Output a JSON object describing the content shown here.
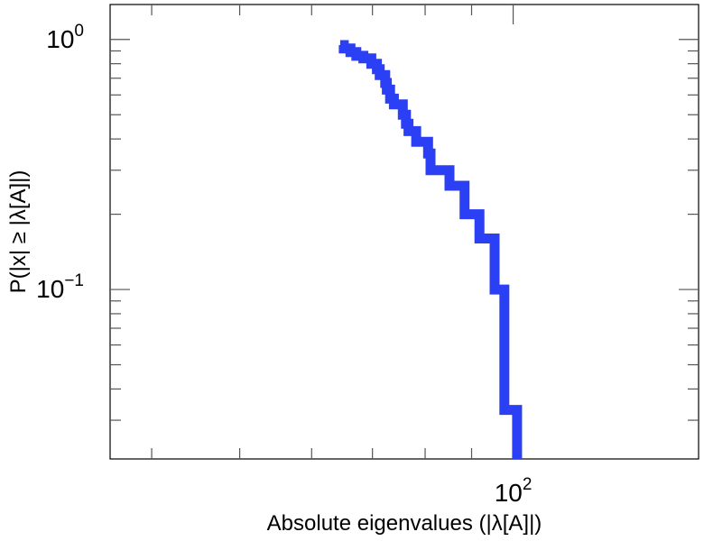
{
  "chart_data": {
    "type": "line",
    "title": "",
    "xlabel": "Absolute eigenvalues (|λ[A]|)",
    "ylabel": "P(|x| ≥ |λ[A]|)",
    "xscale": "log",
    "yscale": "log",
    "xlim": [
      36,
      160
    ],
    "ylim": [
      0.021,
      1.38
    ],
    "grid": false,
    "legend": "none",
    "x_tick_labels": [
      {
        "value": 100,
        "base": "10",
        "exp": "2"
      }
    ],
    "y_tick_labels": [
      {
        "value": 1,
        "base": "10",
        "exp": "0"
      },
      {
        "value": 0.1,
        "base": "10",
        "exp": "−1"
      }
    ],
    "series": [
      {
        "color": "#2b3ff5",
        "step": "post",
        "x": [
          64.5,
          65.1,
          66.2,
          67.2,
          68.4,
          69.8,
          70.8,
          71.3,
          72.3,
          72.6,
          73.2,
          73.9,
          75.6,
          76.2,
          76.7,
          78.2,
          80.6,
          81.1,
          82.4,
          85.1,
          88.4,
          91.8,
          95.4,
          97.8
        ],
        "y": [
          0.95,
          0.92,
          0.89,
          0.86,
          0.84,
          0.8,
          0.76,
          0.72,
          0.67,
          0.63,
          0.58,
          0.55,
          0.5,
          0.46,
          0.43,
          0.39,
          0.35,
          0.3,
          0.3,
          0.26,
          0.2,
          0.16,
          0.1,
          0.066
        ]
      }
    ],
    "end_segments": [
      {
        "x": 97.8,
        "y": 0.033
      },
      {
        "x": 101.0,
        "y": 0.033
      },
      {
        "x": 101.0,
        "y": 0.021
      }
    ],
    "colors": {
      "series": "#2b3ff5",
      "axes": "#000000",
      "ticks": "#555555"
    }
  }
}
